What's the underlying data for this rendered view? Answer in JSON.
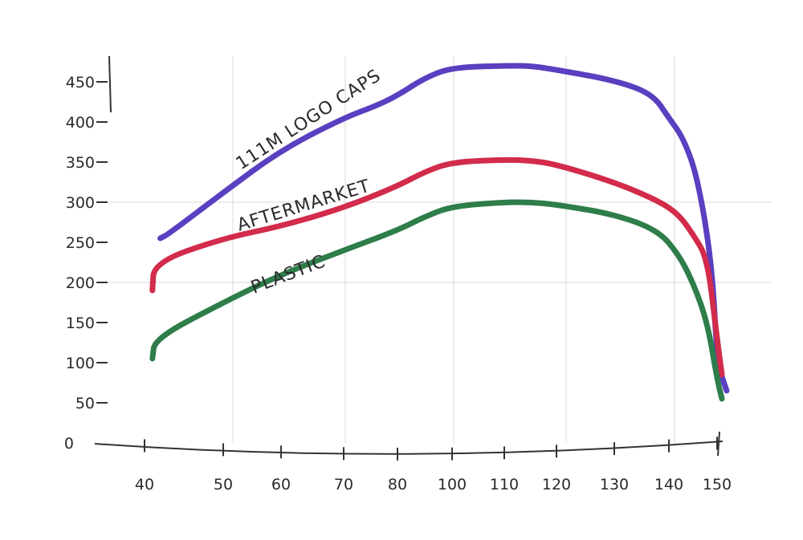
{
  "chart_data": {
    "type": "line",
    "title": "",
    "xlabel": "",
    "ylabel": "",
    "xlim": [
      40,
      152
    ],
    "ylim": [
      0,
      470
    ],
    "x_ticks": [
      40,
      50,
      60,
      70,
      80,
      100,
      110,
      120,
      130,
      140,
      150
    ],
    "x_tick_labels": [
      "40",
      "50",
      "60",
      "70",
      "80",
      "100",
      "110",
      "120",
      "130",
      "140",
      "150"
    ],
    "y_ticks": [
      0,
      50,
      100,
      150,
      200,
      250,
      300,
      350,
      400,
      450
    ],
    "y_tick_labels": [
      "0",
      "50",
      "100",
      "150",
      "200",
      "250",
      "300",
      "350",
      "400",
      "450"
    ],
    "grid": true,
    "series": [
      {
        "name": "111M LOGO CAPS",
        "color": "#5a3fc0",
        "x": [
          42,
          43,
          50,
          60,
          70,
          76,
          80,
          90,
          100,
          110,
          115,
          120,
          130,
          137,
          140,
          143,
          146,
          149,
          150,
          152
        ],
        "y": [
          255,
          260,
          312,
          365,
          405,
          420,
          433,
          455,
          468,
          470,
          470,
          465,
          452,
          435,
          405,
          380,
          330,
          220,
          100,
          65
        ]
      },
      {
        "name": "AFTERMARKET",
        "color": "#d22b4b",
        "x": [
          41,
          41.2,
          50,
          60,
          70,
          80,
          90,
          100,
          110,
          115,
          120,
          130,
          138,
          142,
          145,
          148,
          150,
          151
        ],
        "y": [
          190,
          225,
          255,
          270,
          293,
          320,
          338,
          350,
          353,
          352,
          347,
          325,
          302,
          285,
          260,
          230,
          130,
          85
        ]
      },
      {
        "name": "PLASTIC",
        "color": "#2e7d4a",
        "x": [
          41,
          41.3,
          50,
          60,
          70,
          80,
          90,
          100,
          110,
          115,
          120,
          130,
          138,
          142,
          145,
          148,
          150,
          151
        ],
        "y": [
          105,
          130,
          175,
          210,
          240,
          265,
          282,
          295,
          300,
          300,
          297,
          285,
          265,
          235,
          200,
          150,
          80,
          55
        ]
      }
    ]
  }
}
